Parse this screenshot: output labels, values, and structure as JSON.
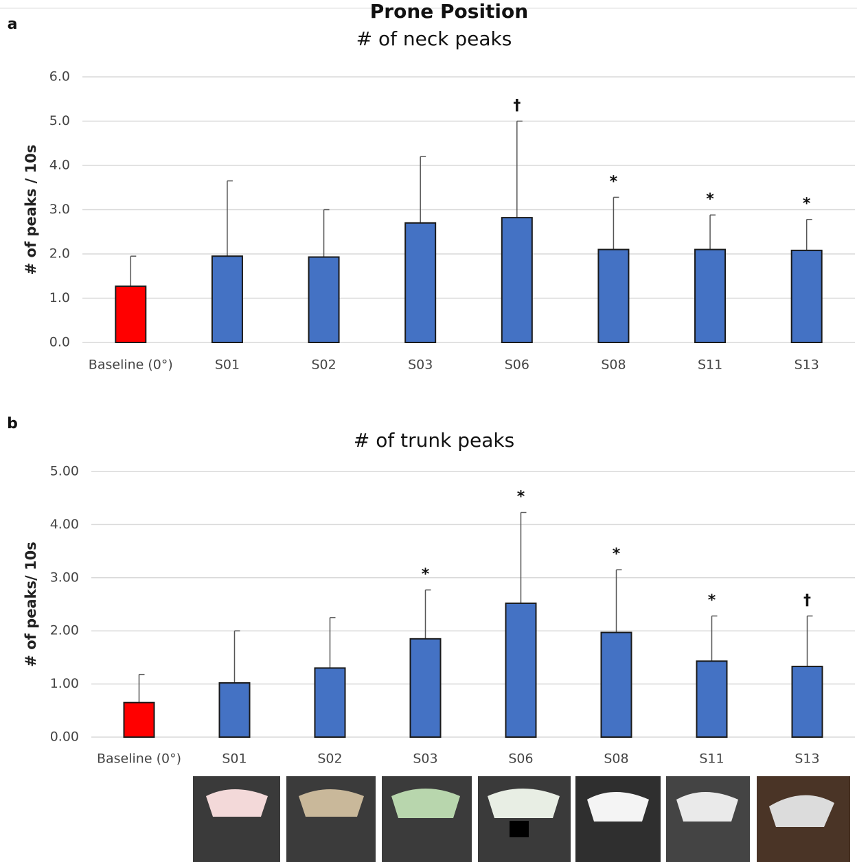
{
  "title": "Prone Position",
  "chart_data": [
    {
      "type": "bar",
      "panel_label": "a",
      "title": "# of neck peaks",
      "y_label": "# of peaks / 10s",
      "categories": [
        "Baseline (0°)",
        "S01",
        "S02",
        "S03",
        "S06",
        "S08",
        "S11",
        "S13"
      ],
      "values": [
        1.27,
        1.95,
        1.93,
        2.7,
        2.82,
        2.1,
        2.1,
        2.08
      ],
      "errors": [
        0.68,
        1.7,
        1.07,
        1.5,
        2.18,
        1.18,
        0.78,
        0.7
      ],
      "markers": [
        null,
        null,
        null,
        null,
        "†",
        "*",
        "*",
        "*"
      ],
      "colors": [
        "#ff0000",
        "#4472c4",
        "#4472c4",
        "#4472c4",
        "#4472c4",
        "#4472c4",
        "#4472c4",
        "#4472c4"
      ],
      "ylim": [
        0,
        6
      ],
      "yticks": [
        {
          "value": 0,
          "label": "0.0"
        },
        {
          "value": 1,
          "label": "1.0"
        },
        {
          "value": 2,
          "label": "2.0"
        },
        {
          "value": 3,
          "label": "3.0"
        },
        {
          "value": 4,
          "label": "4.0"
        },
        {
          "value": 5,
          "label": "5.0"
        },
        {
          "value": 6,
          "label": "6.0"
        }
      ],
      "grid": true
    },
    {
      "type": "bar",
      "panel_label": "b",
      "title": "# of trunk peaks",
      "y_label": "# of peaks/ 10s",
      "categories": [
        "Baseline (0°)",
        "S01",
        "S02",
        "S03",
        "S06",
        "S08",
        "S11",
        "S13"
      ],
      "values": [
        0.65,
        1.02,
        1.3,
        1.85,
        2.52,
        1.97,
        1.43,
        1.33
      ],
      "errors": [
        0.53,
        0.98,
        0.95,
        0.92,
        1.71,
        1.18,
        0.85,
        0.95
      ],
      "markers": [
        null,
        null,
        null,
        "*",
        "*",
        "*",
        "*",
        "†"
      ],
      "colors": [
        "#ff0000",
        "#4472c4",
        "#4472c4",
        "#4472c4",
        "#4472c4",
        "#4472c4",
        "#4472c4",
        "#4472c4"
      ],
      "ylim": [
        0,
        5
      ],
      "yticks": [
        {
          "value": 0,
          "label": "0.00"
        },
        {
          "value": 1,
          "label": "1.00"
        },
        {
          "value": 2,
          "label": "2.00"
        },
        {
          "value": 3,
          "label": "3.00"
        },
        {
          "value": 4,
          "label": "4.00"
        },
        {
          "value": 5,
          "label": "5.00"
        }
      ],
      "grid": true
    }
  ]
}
